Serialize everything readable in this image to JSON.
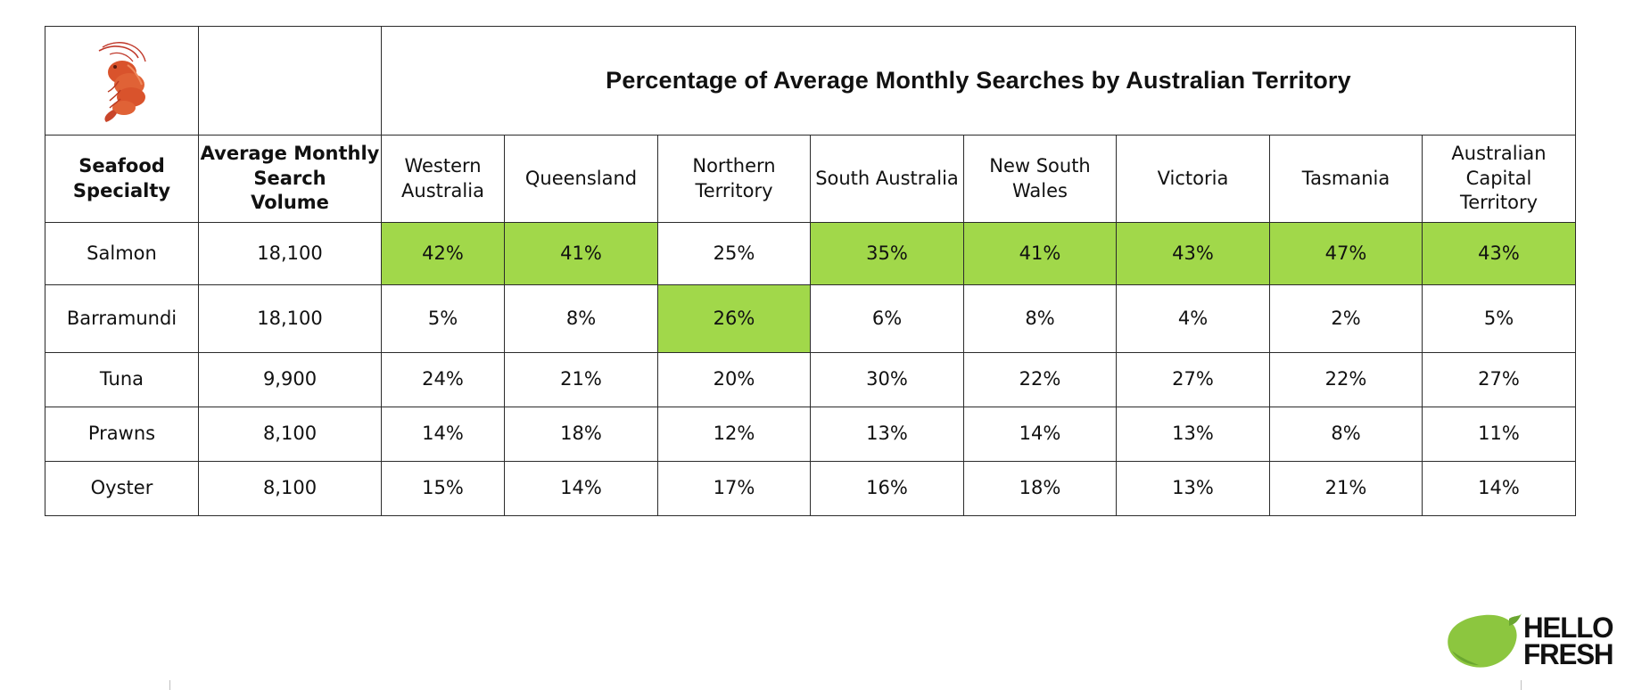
{
  "chart_data": {
    "type": "table",
    "title": "Percentage of Average Monthly Searches by Australian Territory",
    "columns": [
      "Seafood Specialty",
      "Average Monthly Search Volume",
      "Western Australia",
      "Queensland",
      "Northern Territory",
      "South Australia",
      "New South Wales",
      "Victoria",
      "Tasmania",
      "Australian Capital Territory"
    ],
    "header_lines": [
      [
        "Seafood",
        "Specialty"
      ],
      [
        "Average Monthly",
        "Search",
        "Volume"
      ],
      [
        "Western",
        "Australia"
      ],
      [
        "Queensland"
      ],
      [
        "Northern",
        "Territory"
      ],
      [
        "South Australia"
      ],
      [
        "New South",
        "Wales"
      ],
      [
        "Victoria"
      ],
      [
        "Tasmania"
      ],
      [
        "Australian",
        "Capital",
        "Territory"
      ]
    ],
    "rows": [
      {
        "specialty": "Salmon",
        "volume": "18,100",
        "values": [
          "42%",
          "41%",
          "25%",
          "35%",
          "41%",
          "43%",
          "47%",
          "43%"
        ],
        "highlighted": [
          true,
          true,
          false,
          true,
          true,
          true,
          true,
          true
        ]
      },
      {
        "specialty": "Barramundi",
        "volume": "18,100",
        "values": [
          "5%",
          "8%",
          "26%",
          "6%",
          "8%",
          "4%",
          "2%",
          "5%"
        ],
        "highlighted": [
          false,
          false,
          true,
          false,
          false,
          false,
          false,
          false
        ]
      },
      {
        "specialty": "Tuna",
        "volume": "9,900",
        "values": [
          "24%",
          "21%",
          "20%",
          "30%",
          "22%",
          "27%",
          "22%",
          "27%"
        ],
        "highlighted": [
          false,
          false,
          false,
          false,
          false,
          false,
          false,
          false
        ]
      },
      {
        "specialty": "Prawns",
        "volume": "8,100",
        "values": [
          "14%",
          "18%",
          "12%",
          "13%",
          "14%",
          "13%",
          "8%",
          "11%"
        ],
        "highlighted": [
          false,
          false,
          false,
          false,
          false,
          false,
          false,
          false
        ]
      },
      {
        "specialty": "Oyster",
        "volume": "8,100",
        "values": [
          "15%",
          "14%",
          "17%",
          "16%",
          "18%",
          "13%",
          "21%",
          "14%"
        ],
        "highlighted": [
          false,
          false,
          false,
          false,
          false,
          false,
          false,
          false
        ]
      }
    ],
    "highlight_color": "#a1d84a"
  },
  "icons": {
    "corner_icon": "shrimp-icon",
    "brand_logo": "lime-logo-icon"
  },
  "brand": {
    "line1": "HELLO",
    "line2": "FRESH",
    "colors": {
      "lime": "#8cc63f",
      "lime_shadow": "#6aa630",
      "text": "#111111"
    }
  }
}
